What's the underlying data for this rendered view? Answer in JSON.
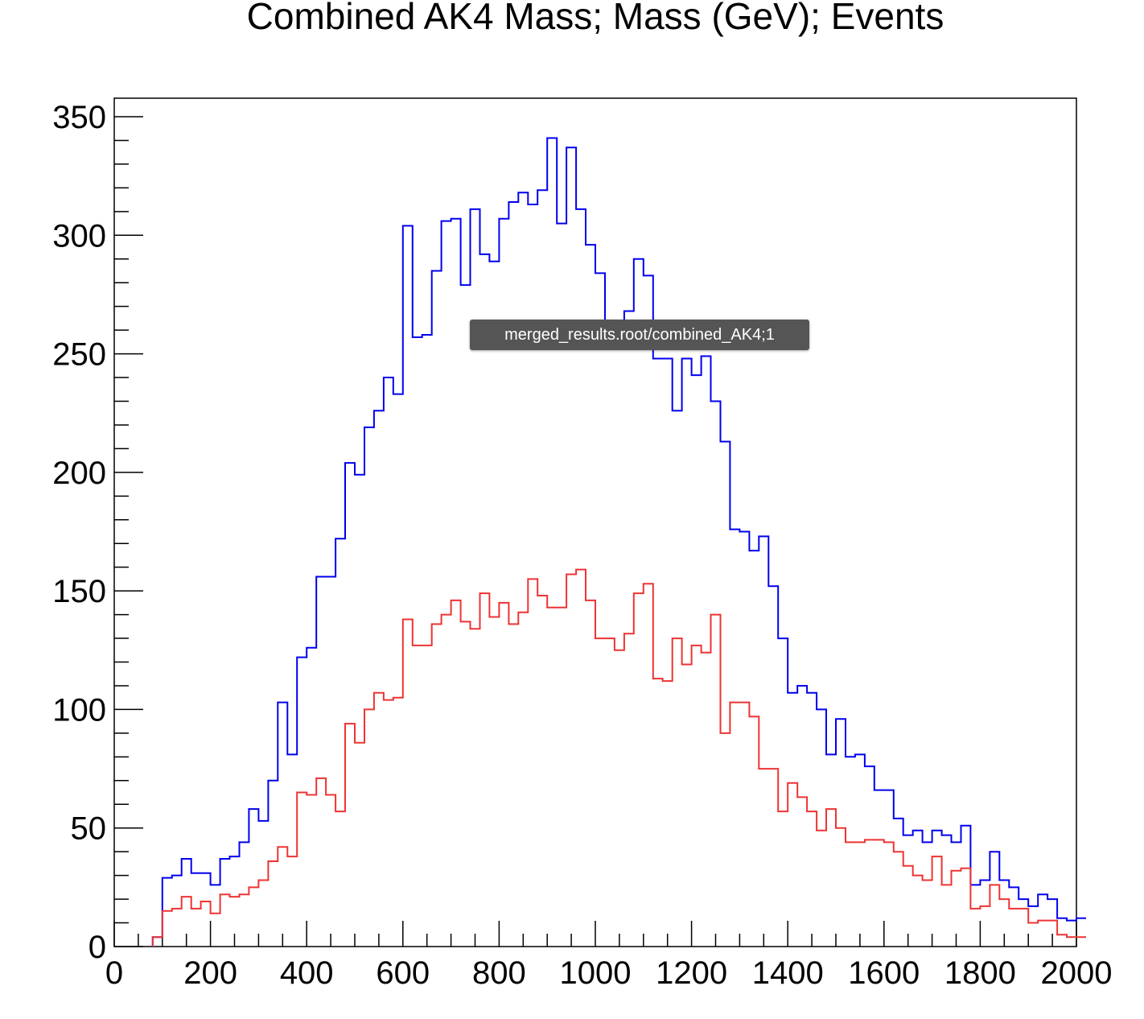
{
  "chart_data": {
    "type": "histogram",
    "title": "Combined AK4 Mass; Mass (GeV); Events",
    "xlabel": "",
    "ylabel": "",
    "xlim": [
      0,
      2000
    ],
    "ylim": [
      0,
      360
    ],
    "x_ticks": [
      0,
      200,
      400,
      600,
      800,
      1000,
      1200,
      1400,
      1600,
      1800,
      2000
    ],
    "y_ticks": [
      0,
      50,
      100,
      150,
      200,
      250,
      300,
      350
    ],
    "bin_start": 80,
    "bin_width": 20,
    "grid": false,
    "legend": "none",
    "series": [
      {
        "color": "#0000ee",
        "values": [
          4,
          29,
          30,
          37,
          31,
          31,
          26,
          37,
          38,
          44,
          58,
          53,
          70,
          103,
          81,
          122,
          126,
          156,
          156,
          172,
          204,
          199,
          219,
          226,
          240,
          233,
          304,
          257,
          258,
          285,
          306,
          307,
          279,
          311,
          292,
          289,
          307,
          314,
          318,
          313,
          319,
          341,
          305,
          337,
          311,
          296,
          284,
          257,
          263,
          268,
          290,
          283,
          248,
          248,
          226,
          248,
          241,
          249,
          230,
          213,
          176,
          175,
          167,
          173,
          152,
          130,
          107,
          110,
          107,
          100,
          81,
          96,
          80,
          81,
          76,
          66,
          66,
          54,
          47,
          49,
          44,
          49,
          47,
          44,
          51,
          26,
          28,
          40,
          28,
          25,
          20,
          17,
          22,
          20,
          12,
          11,
          12
        ]
      },
      {
        "color": "#ee3333",
        "values": [
          4,
          15,
          16,
          21,
          16,
          19,
          14,
          22,
          21,
          22,
          25,
          28,
          36,
          42,
          38,
          65,
          64,
          71,
          64,
          57,
          94,
          86,
          100,
          107,
          104,
          105,
          138,
          127,
          127,
          136,
          140,
          146,
          137,
          134,
          149,
          139,
          145,
          136,
          141,
          155,
          148,
          143,
          143,
          157,
          159,
          146,
          130,
          130,
          125,
          132,
          149,
          153,
          113,
          112,
          130,
          119,
          127,
          124,
          140,
          90,
          103,
          103,
          97,
          75,
          75,
          57,
          69,
          63,
          57,
          49,
          58,
          50,
          44,
          44,
          45,
          45,
          44,
          40,
          34,
          30,
          28,
          38,
          26,
          32,
          33,
          16,
          17,
          26,
          20,
          16,
          16,
          10,
          11,
          11,
          5,
          4,
          4
        ]
      }
    ]
  },
  "tooltip": {
    "text": "merged_results.root/combined_AK4;1"
  }
}
